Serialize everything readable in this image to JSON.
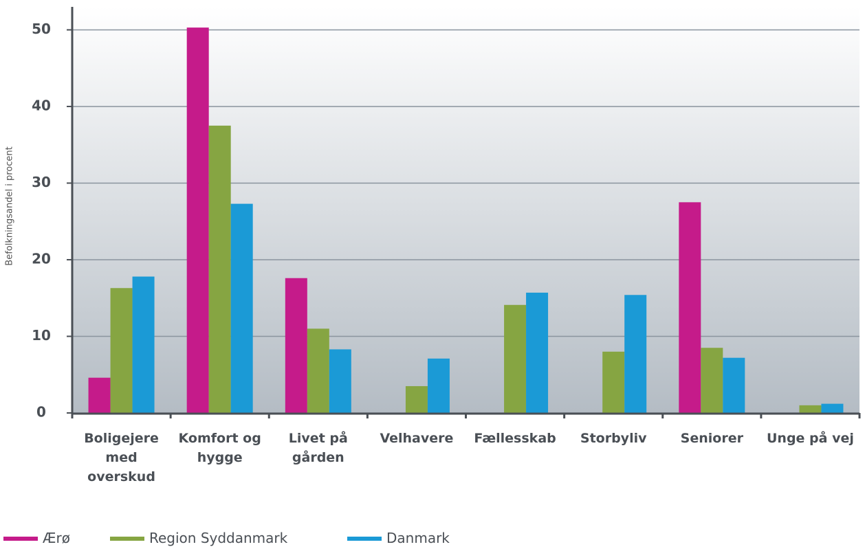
{
  "chart_data": {
    "type": "bar",
    "y_label": "Befolkningsandel i procent",
    "categories": [
      "Boligejere\nmed\noverskud",
      "Komfort og\nhygge",
      "Livet på\ngården",
      "Velhavere",
      "Fællesskab",
      "Storbyliv",
      "Seniorer",
      "Unge på vej"
    ],
    "series": [
      {
        "name": "Ærø",
        "color": "#c51b8a",
        "values": [
          4.6,
          50.3,
          17.6,
          0,
          0,
          0,
          27.5,
          0
        ]
      },
      {
        "name": "Region Syddanmark",
        "color": "#86a542",
        "values": [
          16.3,
          37.5,
          11.0,
          3.5,
          14.1,
          8.0,
          8.5,
          1.0
        ]
      },
      {
        "name": "Danmark",
        "color": "#1b9ad6",
        "values": [
          17.8,
          27.3,
          8.3,
          7.1,
          15.7,
          15.4,
          7.2,
          1.2
        ]
      }
    ],
    "ylim": [
      0,
      53
    ],
    "yticks": [
      0,
      10,
      20,
      30,
      40,
      50
    ],
    "grid": true
  }
}
